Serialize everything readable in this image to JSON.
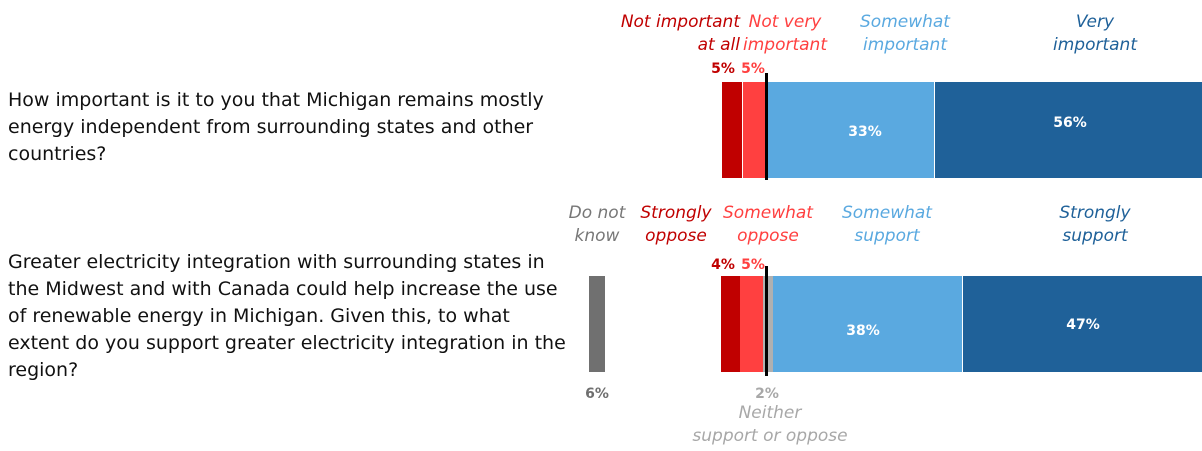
{
  "chart_data": [
    {
      "type": "bar",
      "question": "How important is it to you that Michigan remains mostly energy independent from surrounding states and other countries?",
      "categories": [
        "Not important at all",
        "Not very important",
        "Somewhat important",
        "Very important"
      ],
      "values": [
        5,
        5,
        33,
        56
      ],
      "labels": [
        "5%",
        "5%",
        "33%",
        "56%"
      ],
      "colors": [
        "#c00000",
        "#ff4040",
        "#5aa9e0",
        "#1f6199"
      ]
    },
    {
      "type": "bar",
      "question": "Greater electricity integration with surrounding states in the Midwest and with Canada could help increase the use of renewable energy in Michigan. Given this, to what extent do you support greater electricity integration in the region?",
      "categories": [
        "Do not know",
        "Strongly oppose",
        "Somewhat oppose",
        "Neither support or oppose",
        "Somewhat support",
        "Strongly support"
      ],
      "values": [
        6,
        4,
        5,
        2,
        38,
        47
      ],
      "labels": [
        "6%",
        "4%",
        "5%",
        "2%",
        "38%",
        "47%"
      ],
      "colors": [
        "#707070",
        "#c00000",
        "#ff4040",
        "#b0b0b0",
        "#5aa9e0",
        "#1f6199"
      ]
    }
  ],
  "q1": {
    "text": "How important is it to you that Michigan remains mostly energy independent from surrounding states and other countries?",
    "h_not_at_all_1": "Not important",
    "h_not_at_all_2": "at all",
    "h_not_very_1": "Not very",
    "h_not_very_2": "important",
    "h_somewhat_1": "Somewhat",
    "h_somewhat_2": "important",
    "h_very_1": "Very",
    "h_very_2": "important",
    "v_not_at_all": "5%",
    "v_not_very": "5%",
    "v_somewhat": "33%",
    "v_very": "56%"
  },
  "q2": {
    "text": "Greater electricity integration with surrounding states in the Midwest and with Canada could help increase the use of renewable energy in Michigan. Given this, to what extent do you support greater electricity integration in the region?",
    "h_dk_1": "Do not",
    "h_dk_2": "know",
    "h_so_1": "Strongly",
    "h_so_2": "oppose",
    "h_swo_1": "Somewhat",
    "h_swo_2": "oppose",
    "h_sws_1": "Somewhat",
    "h_sws_2": "support",
    "h_ss_1": "Strongly",
    "h_ss_2": "support",
    "h_neither_1": "Neither",
    "h_neither_2": "support or oppose",
    "v_dk": "6%",
    "v_so": "4%",
    "v_swo": "5%",
    "v_neither": "2%",
    "v_sws": "38%",
    "v_ss": "47%"
  },
  "colors": {
    "strong_neg": "#c00000",
    "neg": "#ff4040",
    "pos": "#5aa9e0",
    "strong_pos": "#1f6199",
    "neutral": "#b0b0b0",
    "dont_know": "#707070"
  }
}
